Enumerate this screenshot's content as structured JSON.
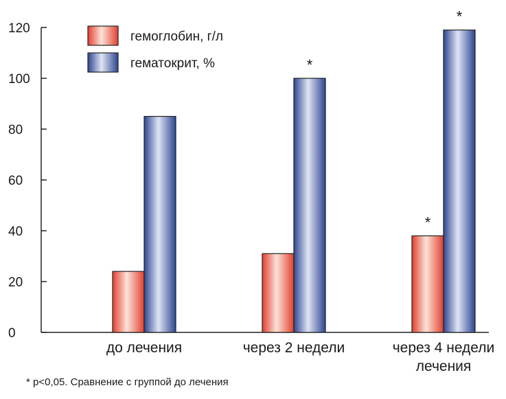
{
  "chart_data": {
    "type": "bar",
    "title": "",
    "xlabel": "",
    "ylabel": "",
    "ylim": [
      0,
      120
    ],
    "yticks": [
      0,
      20,
      40,
      60,
      80,
      100,
      120
    ],
    "grid": false,
    "legend_position": "top-left",
    "categories": [
      [
        "до лечения"
      ],
      [
        "через 2 недели"
      ],
      [
        "через 4 недели",
        "лечения"
      ]
    ],
    "series": [
      {
        "name": "гемоглобин, г/л",
        "color": "#e8584a",
        "values": [
          24,
          31,
          38
        ],
        "significance": [
          "",
          "",
          "*"
        ]
      },
      {
        "name": "гематокрит, %",
        "color": "#4a5fa0",
        "values": [
          85,
          100,
          119
        ],
        "significance": [
          "",
          "*",
          "*"
        ]
      }
    ]
  },
  "footnote": "* p<0,05. Сравнение с группой до лечения"
}
